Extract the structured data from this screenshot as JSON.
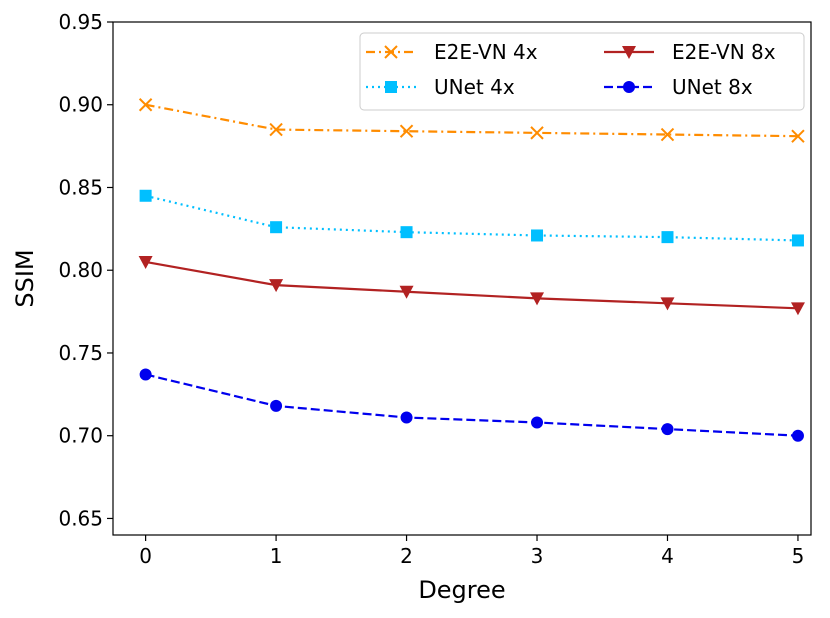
{
  "chart_data": {
    "type": "line",
    "title": "",
    "xlabel": "Degree",
    "ylabel": "SSIM",
    "x": [
      0,
      1,
      2,
      3,
      4,
      5
    ],
    "xlim": [
      -0.25,
      5.1
    ],
    "ylim": [
      0.64,
      0.95
    ],
    "xticks": [
      0,
      1,
      2,
      3,
      4,
      5
    ],
    "xtick_labels": [
      "0",
      "1",
      "2",
      "3",
      "4",
      "5"
    ],
    "yticks": [
      0.65,
      0.7,
      0.75,
      0.8,
      0.85,
      0.9,
      0.95
    ],
    "ytick_labels": [
      "0.65",
      "0.70",
      "0.75",
      "0.80",
      "0.85",
      "0.90",
      "0.95"
    ],
    "grid": false,
    "legend_position": "top-right",
    "series": [
      {
        "name": "E2E-VN 4x",
        "values": [
          0.9,
          0.885,
          0.884,
          0.883,
          0.882,
          0.881
        ],
        "color": "#ff8c00",
        "linestyle": "dash-dot",
        "marker": "x"
      },
      {
        "name": "E2E-VN 8x",
        "values": [
          0.805,
          0.791,
          0.787,
          0.783,
          0.78,
          0.777
        ],
        "color": "#b22222",
        "linestyle": "solid",
        "marker": "triangle-down"
      },
      {
        "name": "UNet 4x",
        "values": [
          0.845,
          0.826,
          0.823,
          0.821,
          0.82,
          0.818
        ],
        "color": "#00bfff",
        "linestyle": "dotted",
        "marker": "square"
      },
      {
        "name": "UNet 8x",
        "values": [
          0.737,
          0.718,
          0.711,
          0.708,
          0.704,
          0.7
        ],
        "color": "#0000ee",
        "linestyle": "dashed",
        "marker": "circle"
      }
    ]
  }
}
